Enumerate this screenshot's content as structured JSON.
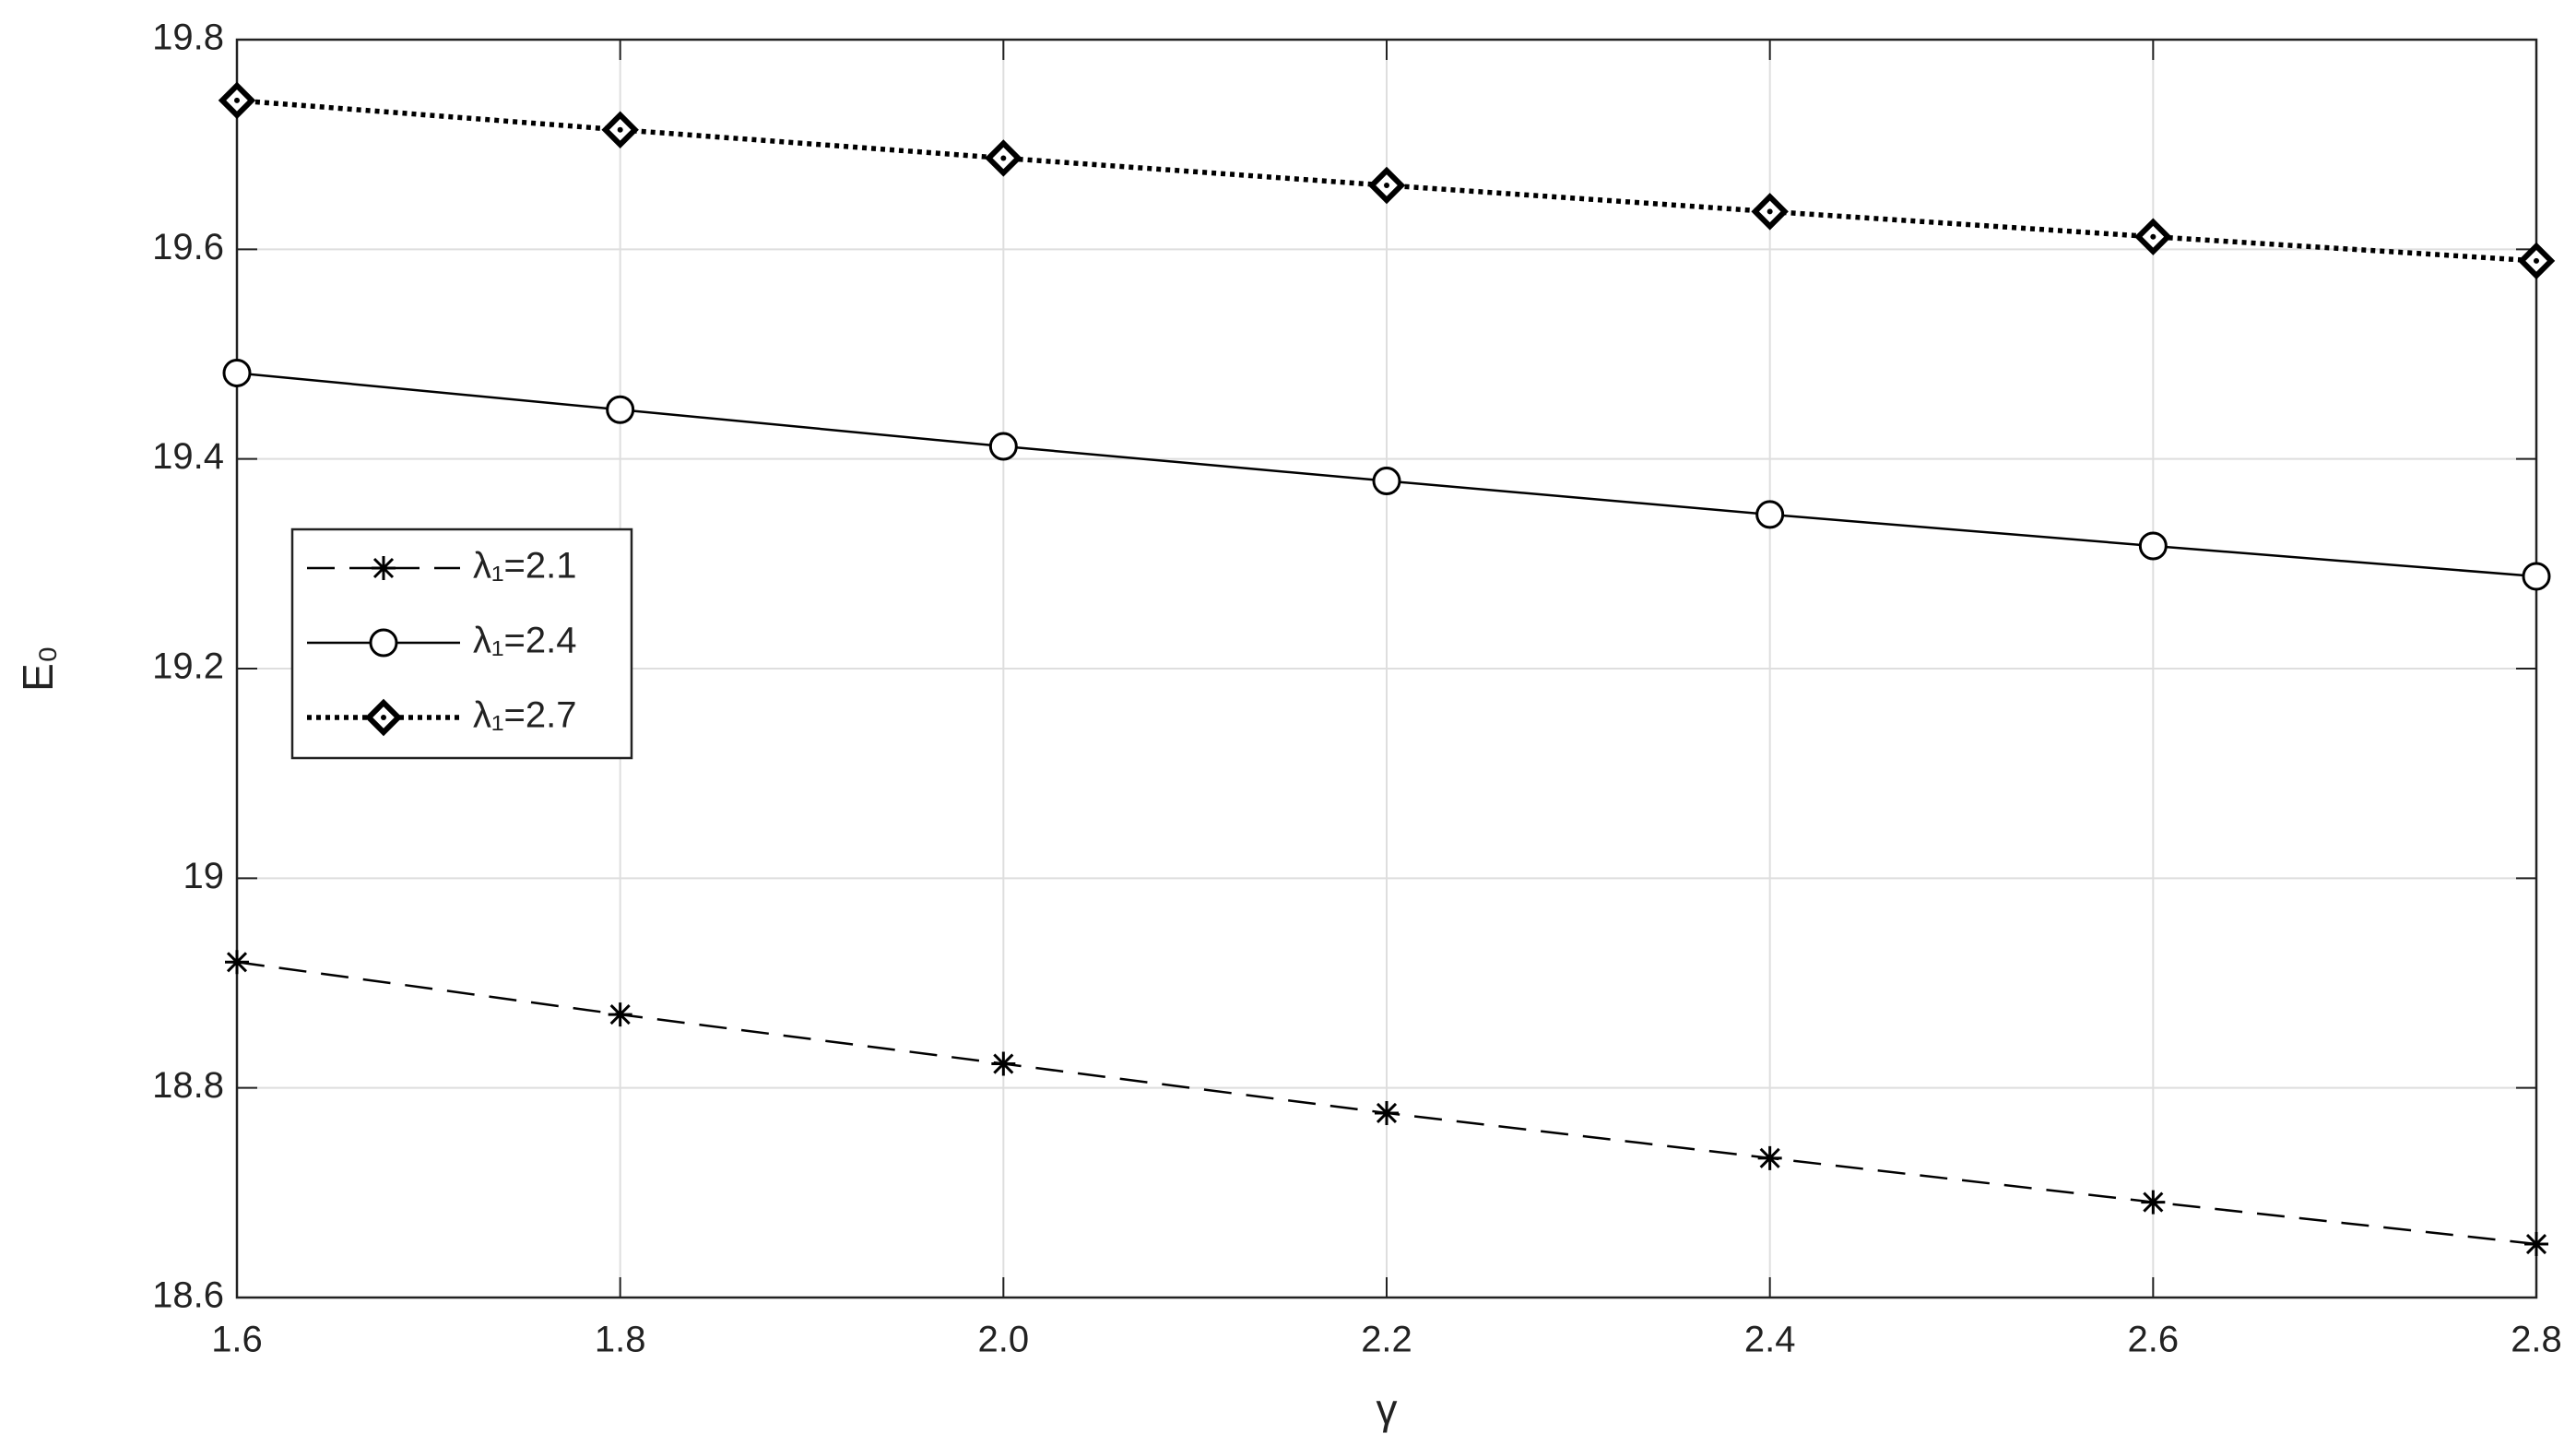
{
  "chart_data": {
    "type": "line",
    "x_label": "γ",
    "y_label": "E₀",
    "x": [
      1.6,
      1.8,
      2.0,
      2.2,
      2.4,
      2.6,
      2.8
    ],
    "series": [
      {
        "name": "λ₁=2.1",
        "color": "#000000",
        "marker": "star",
        "linestyle": "dashed",
        "values": [
          18.92,
          18.87,
          18.823,
          18.776,
          18.733,
          18.691,
          18.651
        ]
      },
      {
        "name": "λ₁=2.4",
        "color": "#000000",
        "marker": "circle",
        "linestyle": "solid",
        "values": [
          19.482,
          19.447,
          19.412,
          19.379,
          19.347,
          19.317,
          19.288
        ]
      },
      {
        "name": "λ₁=2.7",
        "color": "#000000",
        "marker": "diamond",
        "linestyle": "dotted",
        "values": [
          19.742,
          19.714,
          19.687,
          19.661,
          19.636,
          19.612,
          19.589
        ]
      }
    ],
    "xlim": [
      1.6,
      2.8
    ],
    "xticks": [
      1.6,
      1.8,
      {
        "value": 2.0,
        "label": "2.0"
      },
      2.2,
      2.4,
      2.6,
      2.8
    ],
    "ylim": [
      18.6,
      19.8
    ],
    "yticks": [
      18.6,
      18.8,
      19,
      19.2,
      19.4,
      19.6,
      19.8
    ],
    "grid": true,
    "legend": "west"
  }
}
